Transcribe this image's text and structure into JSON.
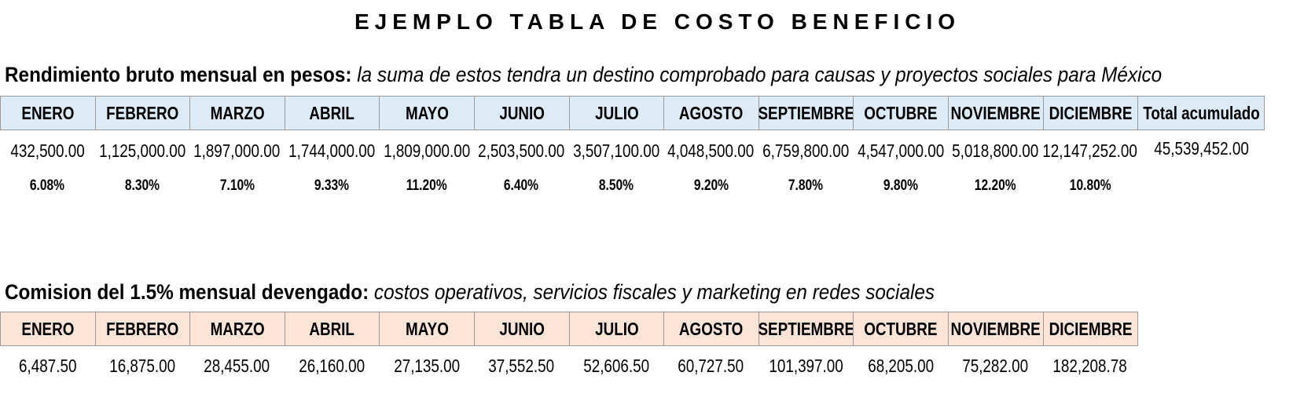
{
  "title": "EJEMPLO TABLA DE COSTO BENEFICIO",
  "section1": {
    "heading_bold": "Rendimiento bruto mensual en pesos:",
    "heading_italic": "la suma de estos tendra un destino comprobado para causas y proyectos sociales para México",
    "headers": [
      "ENERO",
      "FEBRERO",
      "MARZO",
      "ABRIL",
      "MAYO",
      "JUNIO",
      "JULIO",
      "AGOSTO",
      "SEPTIEMBRE",
      "OCTUBRE",
      "NOVIEMBRE",
      "DICIEMBRE",
      "Total acumulado"
    ],
    "values": [
      "432,500.00",
      "1,125,000.00",
      "1,897,000.00",
      "1,744,000.00",
      "1,809,000.00",
      "2,503,500.00",
      "3,507,100.00",
      "4,048,500.00",
      "6,759,800.00",
      "4,547,000.00",
      "5,018,800.00",
      "12,147,252.00"
    ],
    "total": "45,539,452.00",
    "percentages": [
      "6.08%",
      "8.30%",
      "7.10%",
      "9.33%",
      "11.20%",
      "6.40%",
      "8.50%",
      "9.20%",
      "7.80%",
      "9.80%",
      "12.20%",
      "10.80%"
    ]
  },
  "section2": {
    "heading_bold": "Comision del 1.5% mensual devengado:",
    "heading_italic": "costos operativos, servicios fiscales y marketing en redes sociales",
    "headers": [
      "ENERO",
      "FEBRERO",
      "MARZO",
      "ABRIL",
      "MAYO",
      "JUNIO",
      "JULIO",
      "AGOSTO",
      "SEPTIEMBRE",
      "OCTUBRE",
      "NOVIEMBRE",
      "DICIEMBRE"
    ],
    "values": [
      "6,487.50",
      "16,875.00",
      "28,455.00",
      "26,160.00",
      "27,135.00",
      "37,552.50",
      "52,606.50",
      "60,727.50",
      "101,397.00",
      "68,205.00",
      "75,282.00",
      "182,208.78"
    ]
  }
}
